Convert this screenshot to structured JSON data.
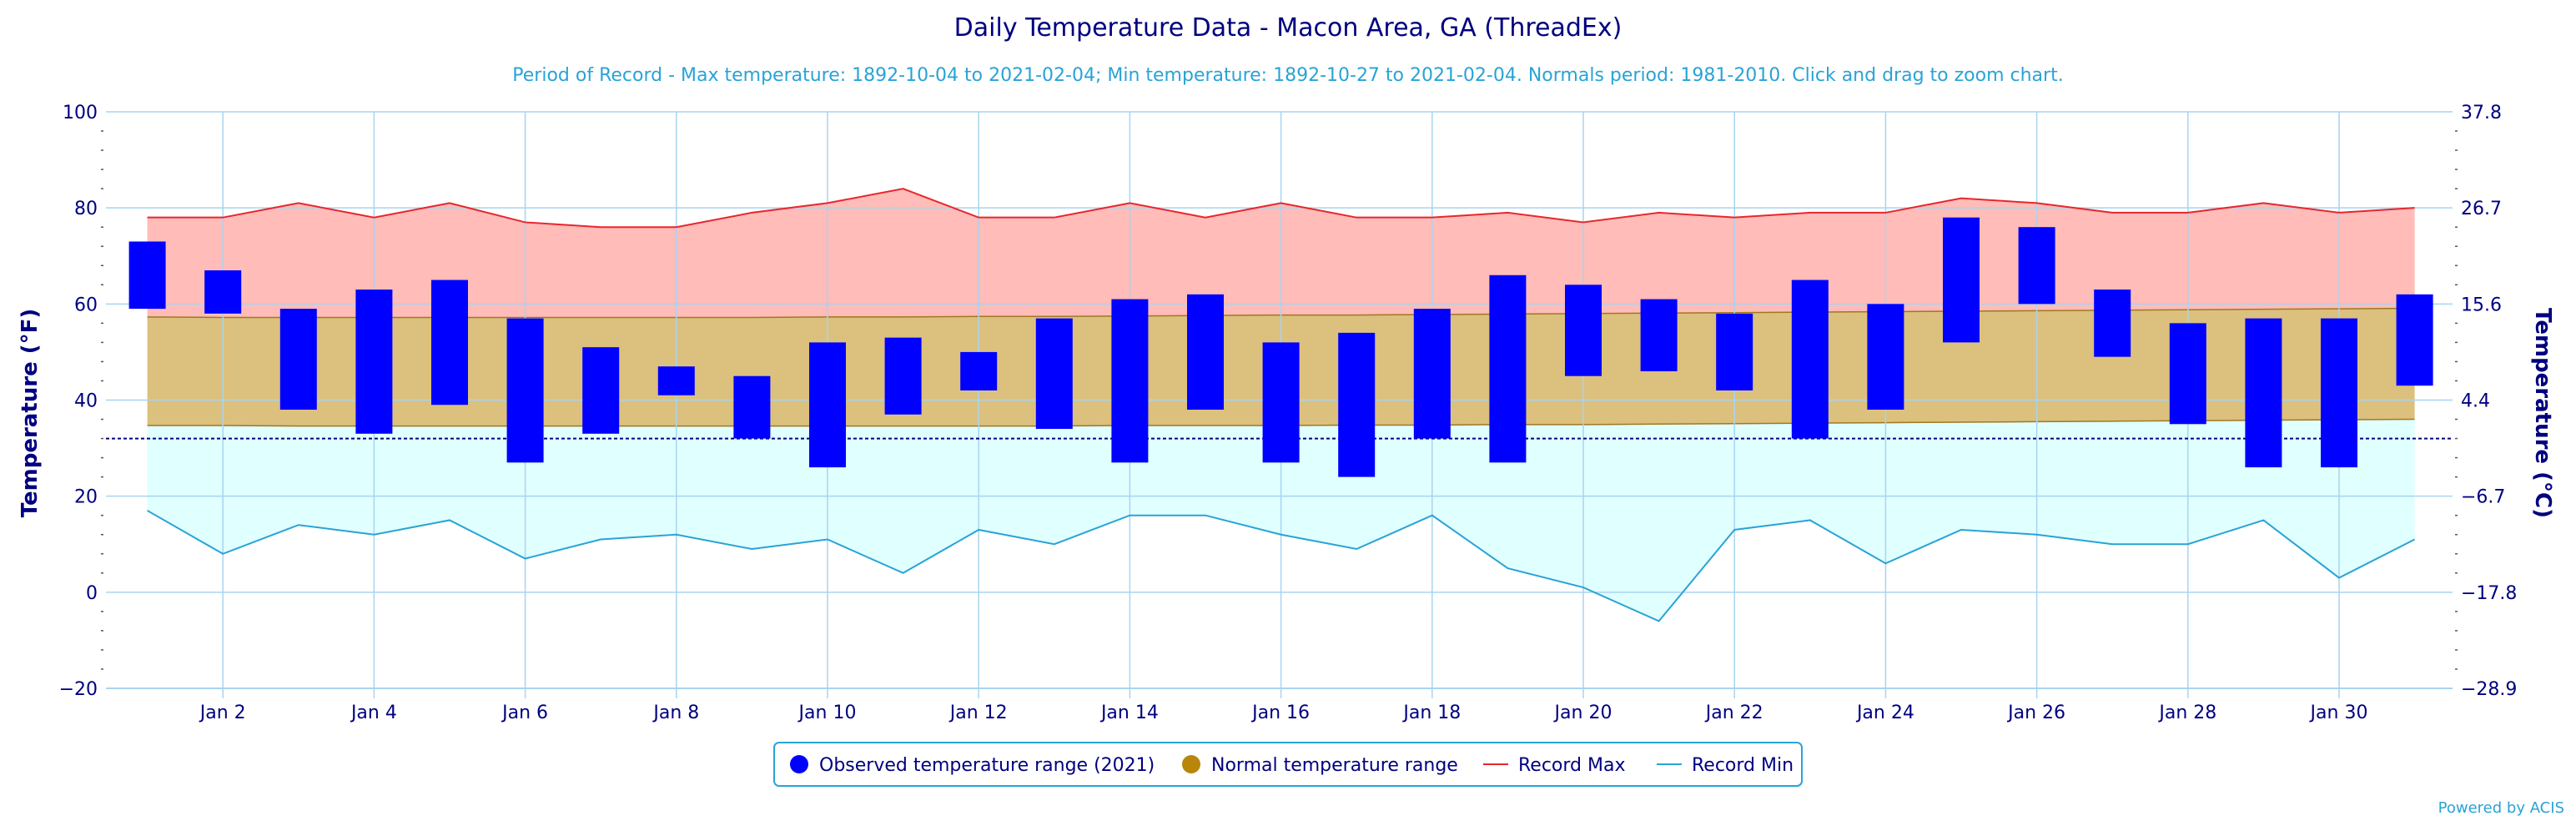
{
  "chart_data": {
    "type": "bar",
    "title": "Daily Temperature Data - Macon Area, GA (ThreadEx)",
    "subtitle": "Period of Record - Max temperature: 1892-10-04 to 2021-02-04; Min temperature: 1892-10-27 to 2021-02-04. Normals period: 1981-2010. Click and drag to zoom chart.",
    "ylabel": "Temperature (°F)",
    "y2label": "Temperature (°C)",
    "ylim": [
      -20,
      100
    ],
    "y_ticks": [
      "100",
      "80",
      "60",
      "40",
      "20",
      "0",
      "−20"
    ],
    "y2_ticks": [
      "37.8",
      "26.7",
      "15.6",
      "4.4",
      "−6.7",
      "−17.8",
      "−28.9"
    ],
    "x_tick_labels": [
      "Jan 2",
      "Jan 4",
      "Jan 6",
      "Jan 8",
      "Jan 10",
      "Jan 12",
      "Jan 14",
      "Jan 16",
      "Jan 18",
      "Jan 20",
      "Jan 22",
      "Jan 24",
      "Jan 26",
      "Jan 28",
      "Jan 30"
    ],
    "x_tick_days": [
      2,
      4,
      6,
      8,
      10,
      12,
      14,
      16,
      18,
      20,
      22,
      24,
      26,
      28,
      30
    ],
    "days": [
      1,
      2,
      3,
      4,
      5,
      6,
      7,
      8,
      9,
      10,
      11,
      12,
      13,
      14,
      15,
      16,
      17,
      18,
      19,
      20,
      21,
      22,
      23,
      24,
      25,
      26,
      27,
      28,
      29,
      30,
      31
    ],
    "freezing_line": 32,
    "grid": true,
    "legend_position": "bottom-center",
    "series": [
      {
        "name": "Observed temperature range (2021)",
        "kind": "range-bar",
        "color": "#0000ff",
        "low": [
          59,
          58,
          38,
          33,
          39,
          27,
          33,
          41,
          32,
          26,
          37,
          42,
          34,
          27,
          38,
          27,
          24,
          32,
          27,
          45,
          46,
          42,
          32,
          38,
          52,
          60,
          49,
          35,
          26,
          26,
          43
        ],
        "high": [
          73,
          67,
          59,
          63,
          65,
          57,
          51,
          47,
          45,
          52,
          53,
          50,
          57,
          61,
          62,
          52,
          54,
          59,
          66,
          64,
          61,
          58,
          65,
          60,
          78,
          76,
          63,
          56,
          57,
          57,
          62
        ]
      },
      {
        "name": "Normal temperature range",
        "kind": "range-area",
        "color": "#b8860b",
        "low": [
          34.7,
          34.7,
          34.6,
          34.6,
          34.6,
          34.6,
          34.6,
          34.6,
          34.6,
          34.6,
          34.6,
          34.6,
          34.6,
          34.7,
          34.7,
          34.7,
          34.8,
          34.8,
          34.9,
          34.9,
          35.0,
          35.1,
          35.2,
          35.3,
          35.4,
          35.5,
          35.6,
          35.7,
          35.8,
          35.9,
          36.0
        ],
        "high": [
          57.3,
          57.2,
          57.2,
          57.2,
          57.2,
          57.2,
          57.2,
          57.2,
          57.2,
          57.3,
          57.3,
          57.4,
          57.4,
          57.5,
          57.6,
          57.7,
          57.7,
          57.8,
          57.9,
          58.0,
          58.1,
          58.2,
          58.3,
          58.4,
          58.5,
          58.6,
          58.7,
          58.8,
          58.9,
          59.0,
          59.1
        ]
      },
      {
        "name": "Record Max",
        "kind": "line",
        "color": "#e8262d",
        "values": [
          78,
          78,
          81,
          78,
          81,
          77,
          76,
          76,
          79,
          81,
          84,
          78,
          78,
          81,
          78,
          81,
          78,
          78,
          79,
          77,
          79,
          78,
          79,
          79,
          82,
          81,
          79,
          79,
          81,
          79,
          80
        ]
      },
      {
        "name": "Record Min",
        "kind": "line",
        "color": "#29a3d6",
        "values": [
          17,
          8,
          14,
          12,
          15,
          7,
          11,
          12,
          9,
          11,
          4,
          13,
          10,
          16,
          16,
          12,
          9,
          16,
          5,
          1,
          -6,
          13,
          15,
          6,
          13,
          12,
          10,
          10,
          15,
          3,
          11
        ]
      }
    ]
  },
  "colors": {
    "record_max_fill": "#ffbcb8",
    "normal_fill": "#dcc07e",
    "record_min_fill": "#e0ffff",
    "grid": "#a8d4f0",
    "axis_text": "#000080"
  },
  "credit": "Powered by ACIS"
}
